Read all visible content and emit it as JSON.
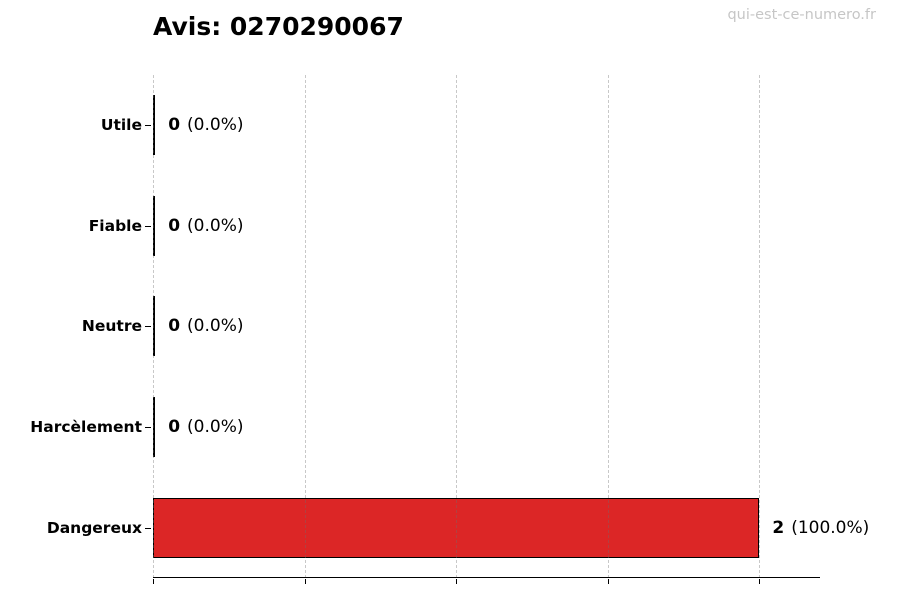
{
  "title": "Avis: 0270290067",
  "watermark": "qui-est-ce-numero.fr",
  "colors": {
    "bar_fill": "#dc2626",
    "bar_edge": "#000000",
    "grid": "#cccccc",
    "axis": "#000000",
    "watermark": "#c6c6c6",
    "background": "#ffffff",
    "text": "#000000"
  },
  "chart_data": {
    "type": "bar",
    "orientation": "horizontal",
    "title": "Avis: 0270290067",
    "categories": [
      "Utile",
      "Fiable",
      "Neutre",
      "Harcèlement",
      "Dangereux"
    ],
    "values": [
      0,
      0,
      0,
      0,
      2
    ],
    "value_counts": [
      "0",
      "0",
      "0",
      "0",
      "2"
    ],
    "value_pcts": [
      "(0.0%)",
      "(0.0%)",
      "(0.0%)",
      "(0.0%)",
      "(100.0%)"
    ],
    "value_labels": [
      "0 (0.0%)",
      "0 (0.0%)",
      "0 (0.0%)",
      "0 (0.0%)",
      "2 (100.0%)"
    ],
    "xlabel": "",
    "ylabel": "",
    "xlim": [
      0,
      2.2
    ],
    "xticks": [
      0,
      0.5,
      1,
      1.5,
      2
    ],
    "xtick_labels_shown": false,
    "grid": "vertical-dashed",
    "legend": "none",
    "bar_color": "#dc2626"
  }
}
